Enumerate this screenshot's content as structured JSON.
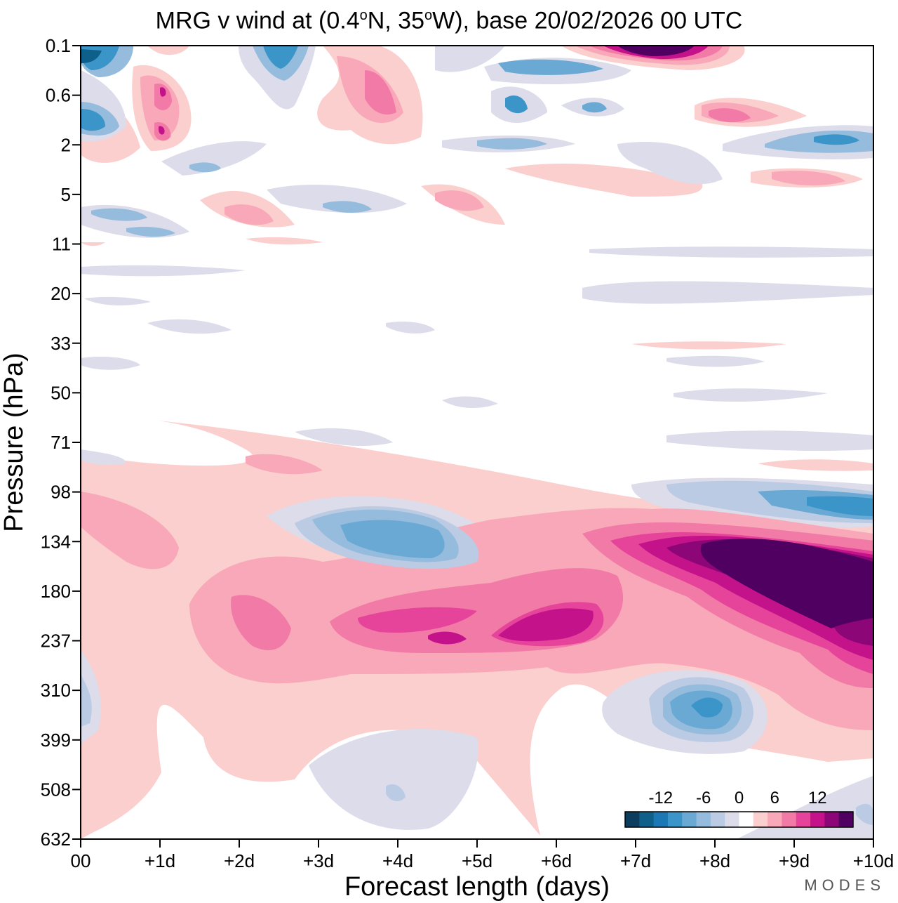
{
  "title": {
    "prefix": "MRG v wind at (0.4",
    "deg1": "o",
    "mid": "N, 35",
    "deg2": "o",
    "suffix": "W),  base 20/02/2026  00 UTC"
  },
  "brand": "MODES",
  "chart_data": {
    "type": "heatmap",
    "title": "MRG v wind at (0.4°N, 35°W),  base 20/02/2026  00 UTC",
    "xlabel": "Forecast length (days)",
    "ylabel": "Pressure (hPa)",
    "x_ticks": [
      {
        "v": 0,
        "label": "00"
      },
      {
        "v": 1,
        "label": "+1d"
      },
      {
        "v": 2,
        "label": "+2d"
      },
      {
        "v": 3,
        "label": "+3d"
      },
      {
        "v": 4,
        "label": "+4d"
      },
      {
        "v": 5,
        "label": "+5d"
      },
      {
        "v": 6,
        "label": "+6d"
      },
      {
        "v": 7,
        "label": "+7d"
      },
      {
        "v": 8,
        "label": "+8d"
      },
      {
        "v": 9,
        "label": "+9d"
      },
      {
        "v": 10,
        "label": "+10d"
      }
    ],
    "y_levels": [
      "0.1",
      "0.6",
      "2",
      "5",
      "11",
      "20",
      "33",
      "50",
      "71",
      "98",
      "134",
      "180",
      "237",
      "310",
      "399",
      "508",
      "632"
    ],
    "xlim": [
      0,
      10
    ],
    "colorbar": {
      "ticks": [
        "-12",
        "-6",
        "0",
        "6",
        "12"
      ],
      "levels": [
        -16,
        -14,
        -12,
        -10,
        -8,
        -6,
        -4,
        -2,
        2,
        4,
        6,
        8,
        10,
        12,
        14,
        16
      ],
      "colors": [
        "#0c3d5e",
        "#0e5f8a",
        "#1b78b4",
        "#3b95c8",
        "#6aa9d3",
        "#95bcdc",
        "#bccbe4",
        "#dcdcea",
        "#ffffff",
        "#fbcfcd",
        "#f8a8b8",
        "#f27aa6",
        "#e5449a",
        "#c4128a",
        "#8c0678",
        "#500060"
      ]
    },
    "features": [
      {
        "name": "jet-positive-upper",
        "x_days": [
          6.5,
          10
        ],
        "level": "134-237",
        "peak": 16
      },
      {
        "name": "positive-band-250",
        "x_days": [
          1,
          6.5
        ],
        "level": "180-237",
        "peak": 12
      },
      {
        "name": "negative-cell-130",
        "x_days": [
          2.5,
          4.8
        ],
        "level": "98-180",
        "peak": -10
      },
      {
        "name": "negative-cell-330",
        "x_days": [
          7.2,
          8.7
        ],
        "level": "270-399",
        "peak": -12
      },
      {
        "name": "negative-band-110",
        "x_days": [
          7,
          10
        ],
        "level": "98-134",
        "peak": -10
      },
      {
        "name": "positive-top-7-8d",
        "x_days": [
          6,
          8.5
        ],
        "level": "0.1",
        "peak": 16
      }
    ]
  }
}
